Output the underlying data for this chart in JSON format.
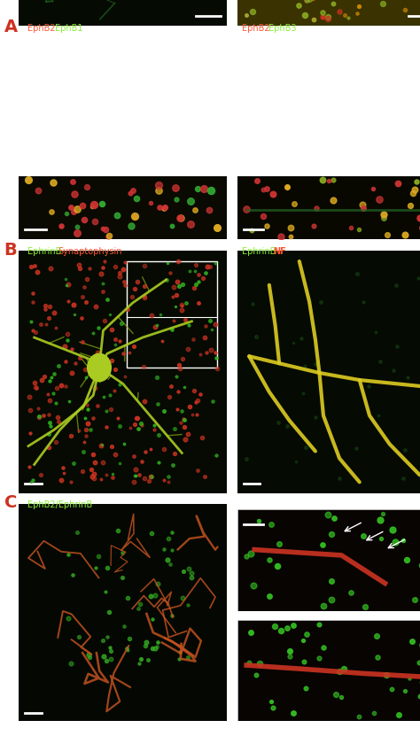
{
  "section_labels": [
    "A",
    "B",
    "C"
  ],
  "panel_labels": {
    "A_left": [
      "EphB2",
      " EphB1"
    ],
    "A_right": [
      "EphB2",
      " EphB3"
    ],
    "B_left": [
      "EphrinB",
      " Synaptophysin"
    ],
    "B_right": [
      "EphrinB",
      " NF"
    ],
    "C_left": [
      "EphB2/EphrinB"
    ],
    "C_right_top": [],
    "C_right_bot": []
  },
  "label_colors": {
    "EphB2": "#ff4444",
    "EphB1": "#88ff44",
    "EphB3": "#88ff44",
    "EphrinB": "#88ff44",
    "Synaptophysin": "#ff4444",
    "NF": "#ff4444",
    "EphB2/EphrinB": "#88ff44",
    "slash": "#88ff44"
  },
  "bg_color": "#000000",
  "section_label_color": "#ff6644",
  "fig_bg": "#ffffff"
}
